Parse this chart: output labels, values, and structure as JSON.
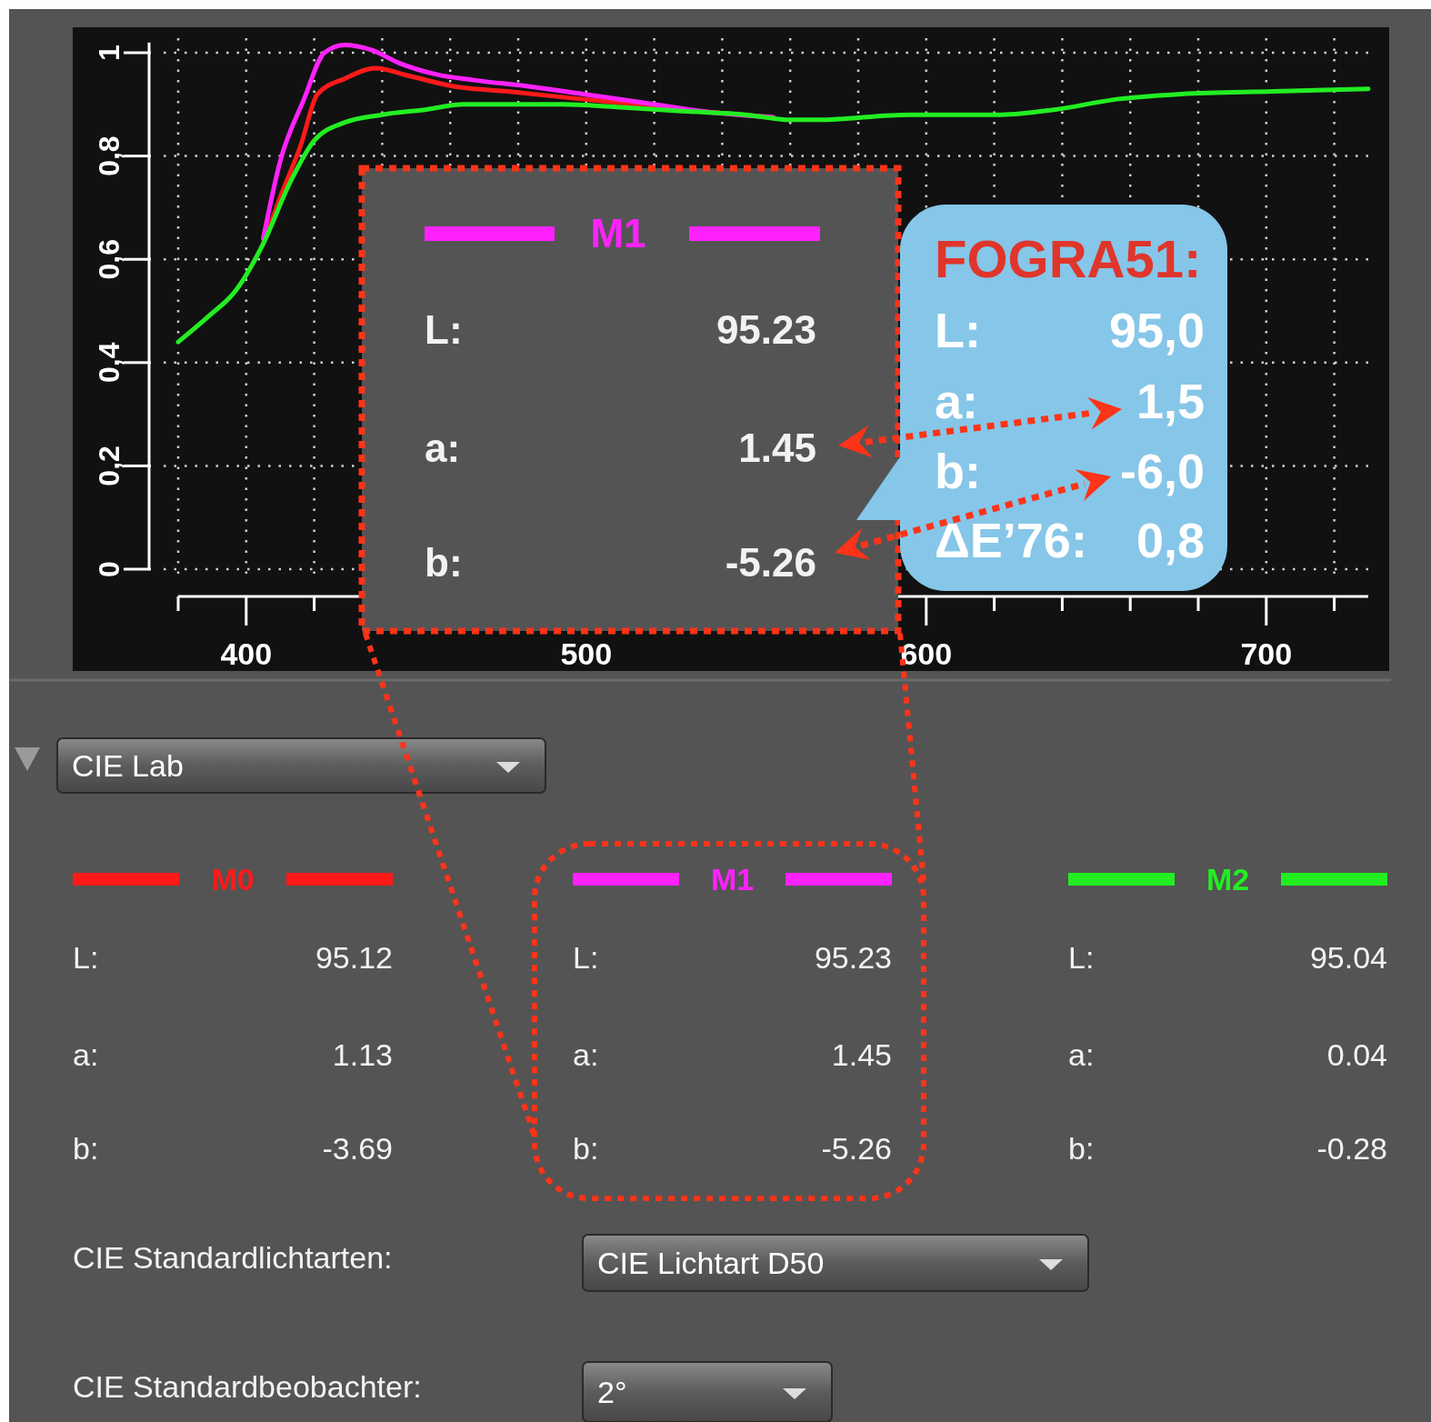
{
  "chart_data": {
    "type": "line",
    "series": [
      {
        "name": "M0",
        "color": "#ff1a1a",
        "x": [
          405,
          410,
          416,
          421,
          429,
          438,
          448,
          461,
          477,
          499,
          515,
          536,
          555
        ],
        "values": [
          0.63,
          0.72,
          0.82,
          0.92,
          0.95,
          0.97,
          0.955,
          0.935,
          0.925,
          0.91,
          0.9,
          0.885,
          0.875
        ]
      },
      {
        "name": "M1",
        "color": "#ff22ff",
        "x": [
          405,
          410,
          417,
          423,
          429,
          437,
          445,
          456,
          467,
          483,
          499,
          515,
          536,
          555
        ],
        "values": [
          0.64,
          0.79,
          0.91,
          1.0,
          1.015,
          1.005,
          0.98,
          0.958,
          0.947,
          0.935,
          0.92,
          0.905,
          0.885,
          0.875
        ]
      },
      {
        "name": "M2",
        "color": "#22ee22",
        "x": [
          380,
          389,
          397,
          405,
          413,
          420,
          429,
          440,
          453,
          464,
          477,
          493,
          509,
          528,
          547,
          560,
          568,
          595,
          622,
          638,
          656,
          675,
          702,
          730
        ],
        "values": [
          0.44,
          0.49,
          0.54,
          0.63,
          0.75,
          0.83,
          0.865,
          0.88,
          0.89,
          0.9,
          0.9,
          0.9,
          0.895,
          0.887,
          0.88,
          0.87,
          0.87,
          0.88,
          0.88,
          0.89,
          0.91,
          0.92,
          0.925,
          0.93
        ]
      }
    ],
    "xlim": [
      380,
      730
    ],
    "xticks": [
      {
        "value": 380,
        "label": null
      },
      400,
      {
        "value": 420,
        "label": null
      },
      {
        "value": 440,
        "label": null
      },
      {
        "value": 460,
        "label": null
      },
      {
        "value": 480,
        "label": null
      },
      500,
      {
        "value": 520,
        "label": null
      },
      {
        "value": 540,
        "label": null
      },
      {
        "value": 560,
        "label": null
      },
      {
        "value": 580,
        "label": null
      },
      600,
      {
        "value": 620,
        "label": null
      },
      {
        "value": 640,
        "label": null
      },
      {
        "value": 660,
        "label": null
      },
      {
        "value": 680,
        "label": null
      },
      700,
      {
        "value": 720,
        "label": null
      }
    ],
    "ylim": [
      0,
      1.02
    ],
    "yticks": [
      0,
      {
        "value": 0.2,
        "label": "0,2"
      },
      {
        "value": 0.4,
        "label": "0,4"
      },
      {
        "value": 0.6,
        "label": "0,6"
      },
      {
        "value": 0.8,
        "label": "0,8"
      },
      1
    ],
    "grid": true,
    "legend": "bottom",
    "line_style": "solid",
    "annotations": [
      "CIE Lab",
      "L:",
      "a:",
      "b:",
      "95.12",
      "1.13",
      "-3.69",
      "95.23",
      "1.45",
      "-5.26",
      "95.04",
      "0.04",
      "-0.28",
      "CIE Standardlichtarten:",
      "CIE Lichtart D50",
      "CIE Standardbeobachter:",
      "2°",
      "FOGRA51:",
      "L:",
      "95,0",
      "a:",
      "1,5",
      "b:",
      "-6,0",
      "ΔE’76:",
      "0,8"
    ]
  }
}
